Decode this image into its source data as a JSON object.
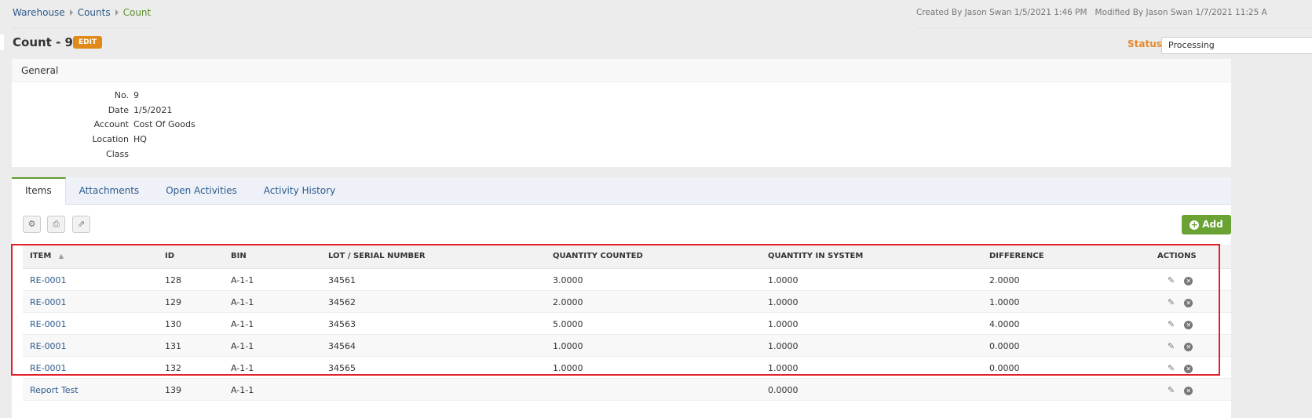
{
  "breadcrumb": [
    "Warehouse",
    "Counts",
    "Count"
  ],
  "meta": {
    "created": "Created By Jason Swan 1/5/2021 1:46 PM",
    "modified": "Modified By Jason Swan 1/7/2021 11:25 A"
  },
  "header": {
    "title": "Count - 9",
    "edit_label": "EDIT",
    "status_label": "Status",
    "status_value": "Processing"
  },
  "general": {
    "title": "General",
    "fields": [
      {
        "k": "No.",
        "v": "9"
      },
      {
        "k": "Date",
        "v": "1/5/2021"
      },
      {
        "k": "Account",
        "v": "Cost Of Goods"
      },
      {
        "k": "Location",
        "v": "HQ"
      },
      {
        "k": "Class",
        "v": ""
      }
    ]
  },
  "tabs": [
    "Items",
    "Attachments",
    "Open Activities",
    "Activity History"
  ],
  "toolbar": {
    "add_label": "Add"
  },
  "table": {
    "columns": [
      "ITEM",
      "ID",
      "BIN",
      "LOT / SERIAL NUMBER",
      "QUANTITY COUNTED",
      "QUANTITY IN SYSTEM",
      "DIFFERENCE",
      "ACTIONS"
    ],
    "rows": [
      [
        "RE-0001",
        "128",
        "A-1-1",
        "34561",
        "3.0000",
        "1.0000",
        "2.0000"
      ],
      [
        "RE-0001",
        "129",
        "A-1-1",
        "34562",
        "2.0000",
        "1.0000",
        "1.0000"
      ],
      [
        "RE-0001",
        "130",
        "A-1-1",
        "34563",
        "5.0000",
        "1.0000",
        "4.0000"
      ],
      [
        "RE-0001",
        "131",
        "A-1-1",
        "34564",
        "1.0000",
        "1.0000",
        "0.0000"
      ],
      [
        "RE-0001",
        "132",
        "A-1-1",
        "34565",
        "1.0000",
        "1.0000",
        "0.0000"
      ],
      [
        "Report Test",
        "139",
        "A-1-1",
        "",
        "",
        "0.0000",
        ""
      ]
    ]
  },
  "colors": {
    "accent": "#e08a1a",
    "add": "#6aa233",
    "link": "#2d5a8c",
    "highlight": "#e3202a"
  }
}
